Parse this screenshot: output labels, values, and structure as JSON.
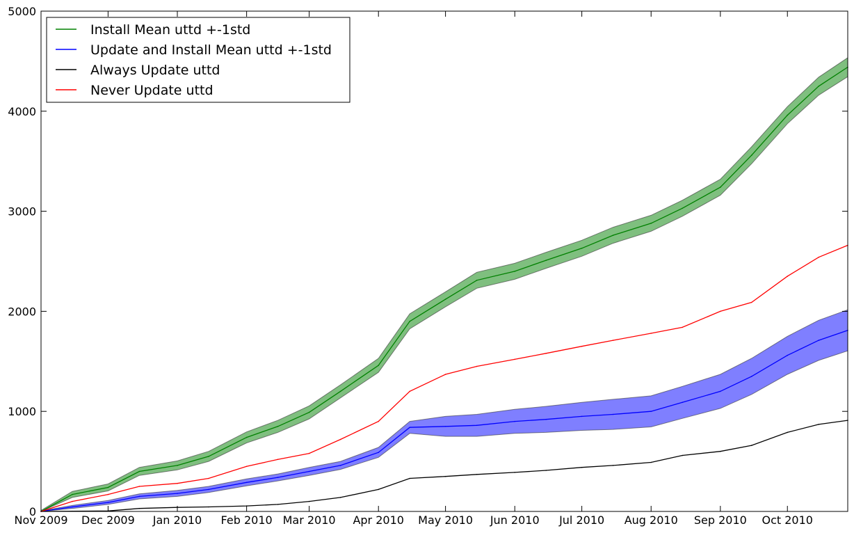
{
  "chart_data": {
    "type": "line",
    "title": "",
    "xlabel": "",
    "ylabel": "",
    "x": [
      "2009-11-01",
      "2009-11-15",
      "2009-12-01",
      "2009-12-15",
      "2010-01-01",
      "2010-01-15",
      "2010-02-01",
      "2010-02-15",
      "2010-03-01",
      "2010-03-15",
      "2010-04-01",
      "2010-04-15",
      "2010-05-01",
      "2010-05-15",
      "2010-06-01",
      "2010-06-15",
      "2010-07-01",
      "2010-07-15",
      "2010-08-01",
      "2010-08-15",
      "2010-09-01",
      "2010-09-15",
      "2010-10-01",
      "2010-10-15",
      "2010-10-28"
    ],
    "xlim": [
      "2009-11-01",
      "2010-10-28"
    ],
    "ylim": [
      0,
      5000
    ],
    "xticks": [
      "Nov 2009",
      "Dec 2009",
      "Jan 2010",
      "Feb 2010",
      "Mar 2010",
      "Apr 2010",
      "May 2010",
      "Jun 2010",
      "Jul 2010",
      "Aug 2010",
      "Sep 2010",
      "Oct 2010"
    ],
    "xtick_dates": [
      "2009-11-01",
      "2009-12-01",
      "2010-01-01",
      "2010-02-01",
      "2010-03-01",
      "2010-04-01",
      "2010-05-01",
      "2010-06-01",
      "2010-07-01",
      "2010-08-01",
      "2010-09-01",
      "2010-10-01"
    ],
    "yticks": [
      "0",
      "1000",
      "2000",
      "3000",
      "4000",
      "5000"
    ],
    "ytick_values": [
      0,
      1000,
      2000,
      3000,
      4000,
      5000
    ],
    "legend_position": "top-left",
    "series": [
      {
        "name": "Install Mean uttd +-1std",
        "color": "#008000",
        "band_color": "#008000",
        "values": [
          0,
          170,
          240,
          400,
          460,
          550,
          740,
          850,
          990,
          1200,
          1460,
          1900,
          2120,
          2310,
          2400,
          2510,
          2630,
          2760,
          2880,
          3030,
          3240,
          3560,
          3960,
          4250,
          4440
        ],
        "std": [
          10,
          30,
          35,
          40,
          45,
          50,
          55,
          60,
          65,
          65,
          70,
          75,
          75,
          80,
          80,
          80,
          80,
          80,
          80,
          80,
          80,
          85,
          85,
          90,
          95
        ]
      },
      {
        "name": "Update and Install Mean uttd +-1std",
        "color": "#0000ff",
        "band_color": "#0000ff",
        "values": [
          0,
          45,
          90,
          150,
          180,
          220,
          290,
          340,
          400,
          460,
          590,
          840,
          850,
          860,
          900,
          920,
          950,
          970,
          1000,
          1090,
          1200,
          1350,
          1560,
          1710,
          1810
        ],
        "std": [
          5,
          15,
          20,
          25,
          30,
          30,
          35,
          35,
          40,
          40,
          50,
          60,
          100,
          110,
          120,
          130,
          140,
          150,
          155,
          160,
          170,
          180,
          190,
          200,
          205
        ]
      },
      {
        "name": "Always Update uttd",
        "color": "#000000",
        "values": [
          0,
          2,
          5,
          30,
          40,
          45,
          55,
          70,
          100,
          140,
          220,
          330,
          350,
          370,
          390,
          410,
          440,
          460,
          490,
          560,
          600,
          660,
          790,
          870,
          910
        ]
      },
      {
        "name": "Never Update uttd",
        "color": "#ff0000",
        "values": [
          0,
          100,
          170,
          250,
          280,
          330,
          450,
          520,
          580,
          720,
          900,
          1200,
          1370,
          1450,
          1520,
          1580,
          1650,
          1710,
          1780,
          1840,
          2000,
          2090,
          2350,
          2540,
          2660
        ]
      }
    ]
  }
}
